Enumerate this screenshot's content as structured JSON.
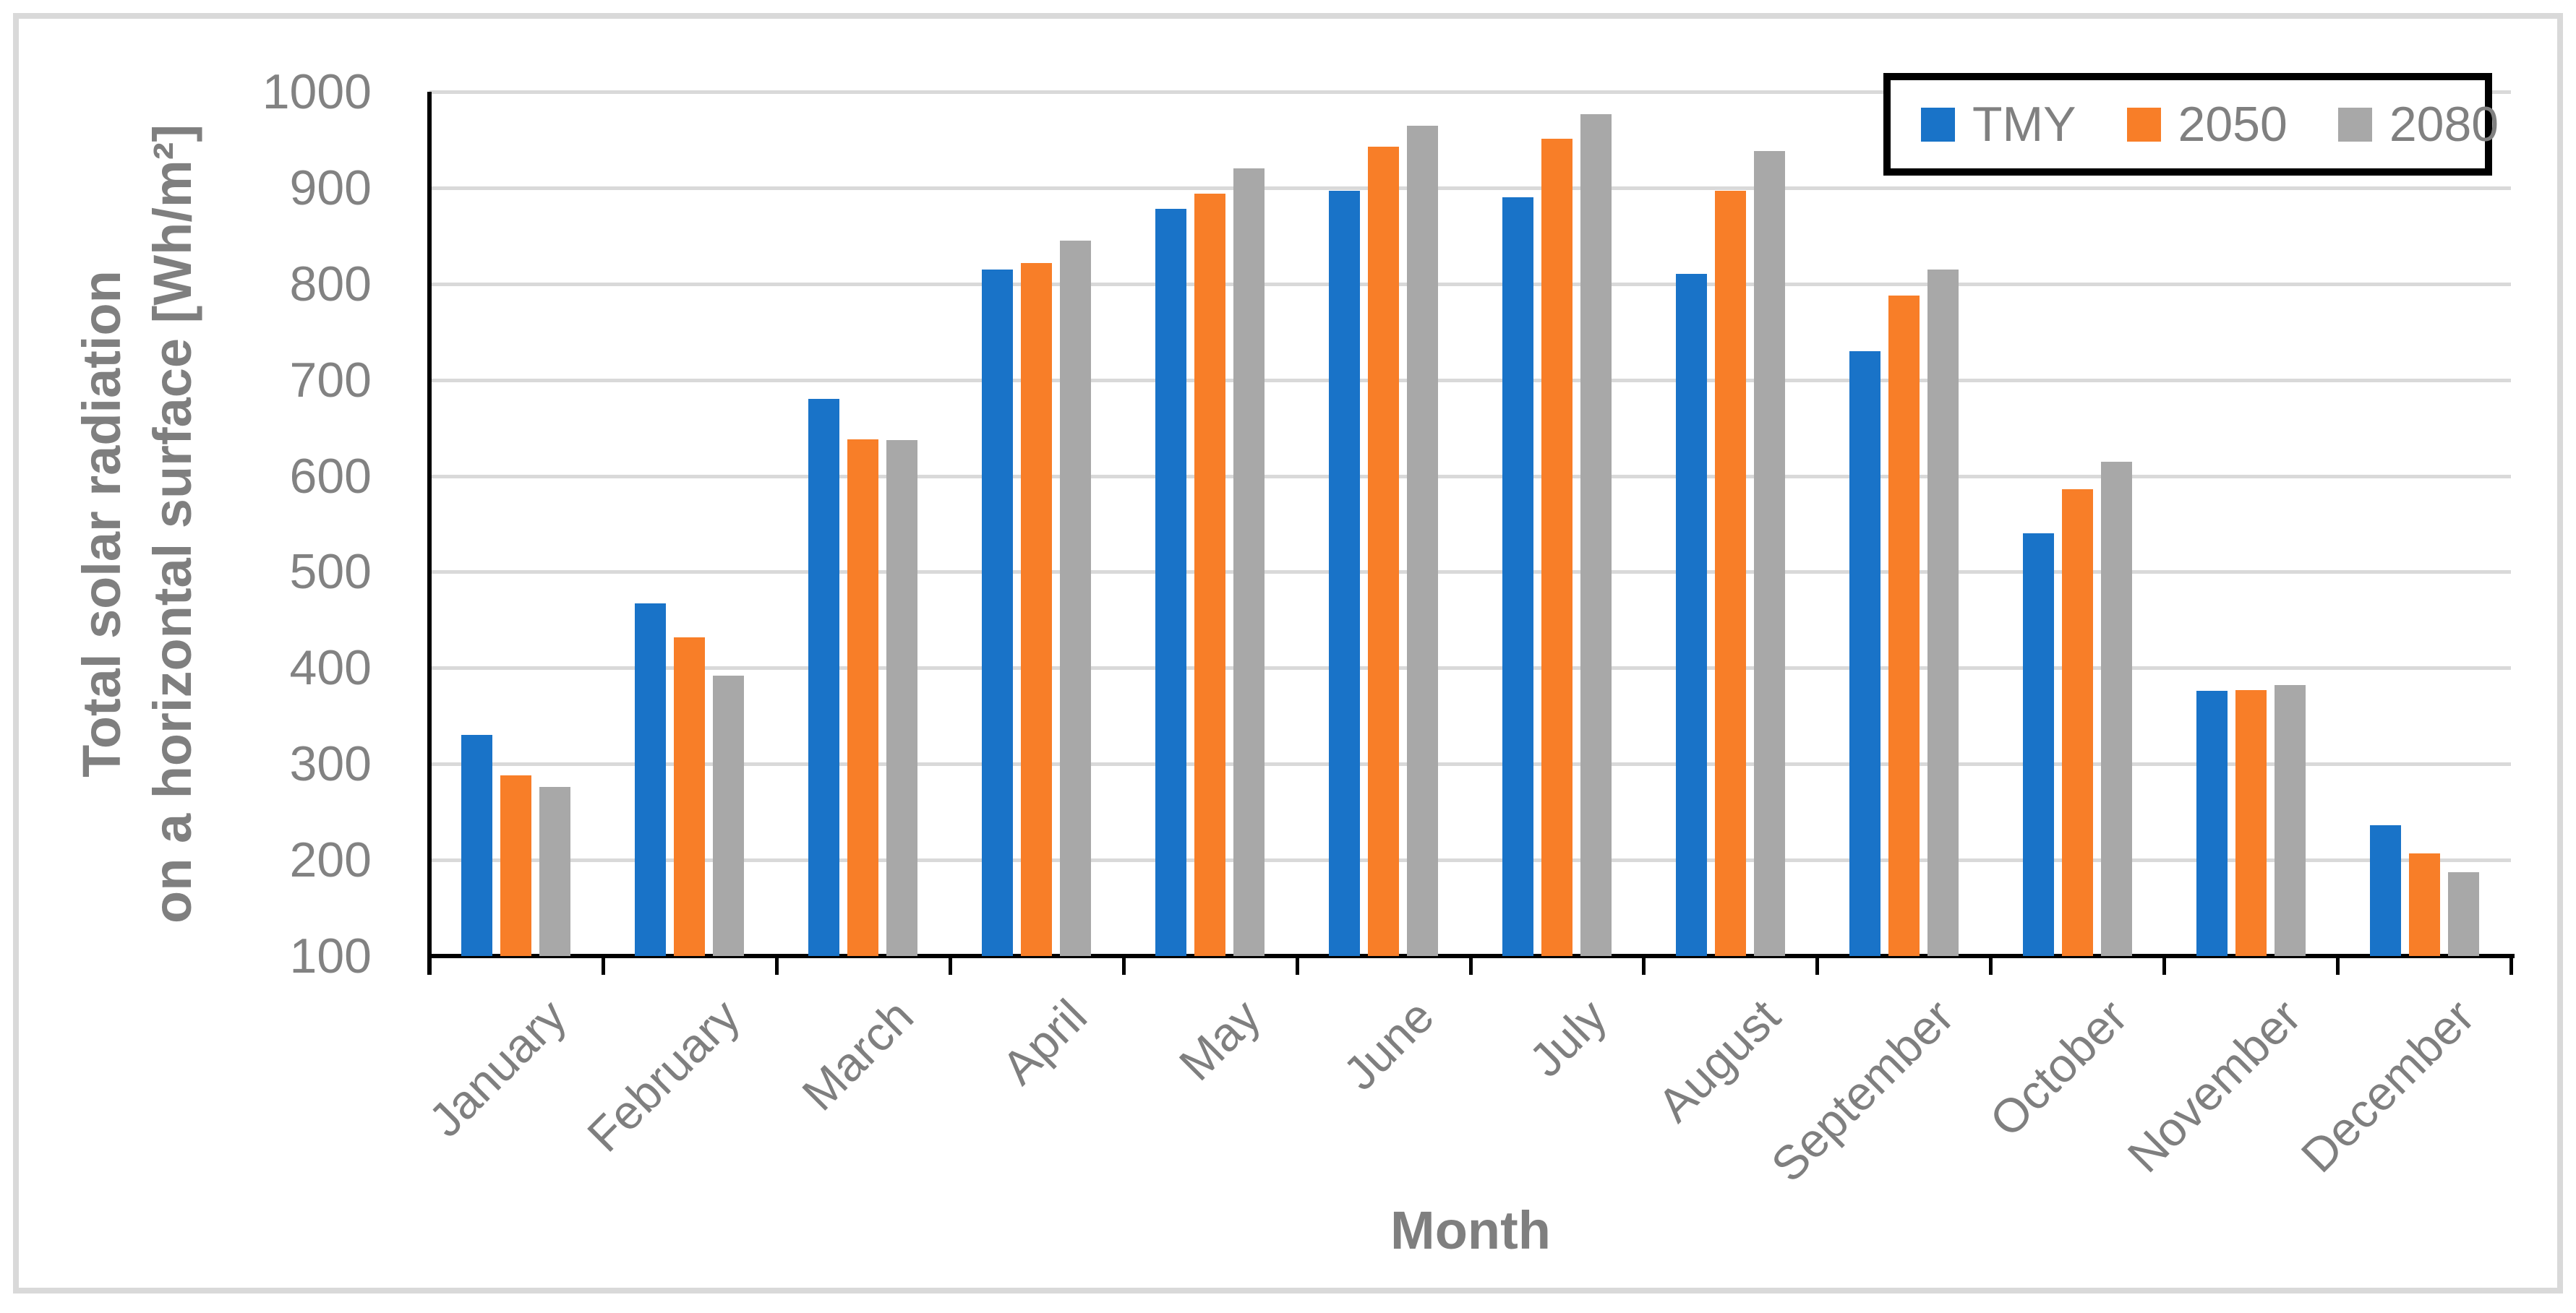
{
  "chart_data": {
    "type": "bar",
    "title": "",
    "xlabel": "Month",
    "ylabel_lines": [
      "Total solar radiation",
      "on a horizontal surface [Wh/m²]"
    ],
    "categories": [
      "January",
      "February",
      "March",
      "April",
      "May",
      "June",
      "July",
      "August",
      "September",
      "October",
      "November",
      "December"
    ],
    "series": [
      {
        "name": "TMY",
        "color": "#1973C8",
        "values": [
          330,
          467,
          680,
          815,
          878,
          897,
          890,
          810,
          730,
          540,
          376,
          236
        ]
      },
      {
        "name": "2050",
        "color": "#F87E28",
        "values": [
          288,
          432,
          638,
          822,
          894,
          943,
          951,
          897,
          788,
          586,
          377,
          207
        ]
      },
      {
        "name": "2080",
        "color": "#A8A8A8",
        "values": [
          276,
          392,
          637,
          845,
          920,
          965,
          977,
          938,
          815,
          615,
          382,
          187
        ]
      }
    ],
    "y_axis": {
      "min": 100,
      "max": 1000,
      "step": 100
    },
    "y_ticks": [
      100,
      200,
      300,
      400,
      500,
      600,
      700,
      800,
      900,
      1000
    ],
    "grid": true,
    "legend_position": "top-right-inside",
    "colors": {
      "gridline": "#D9D9D9",
      "axis_line": "#000000",
      "title_text": "#7F7F7F",
      "tick_text": "#828282",
      "frame_border": "#D9D9D9",
      "legend_border": "#000000",
      "background": "#FFFFFF"
    }
  }
}
